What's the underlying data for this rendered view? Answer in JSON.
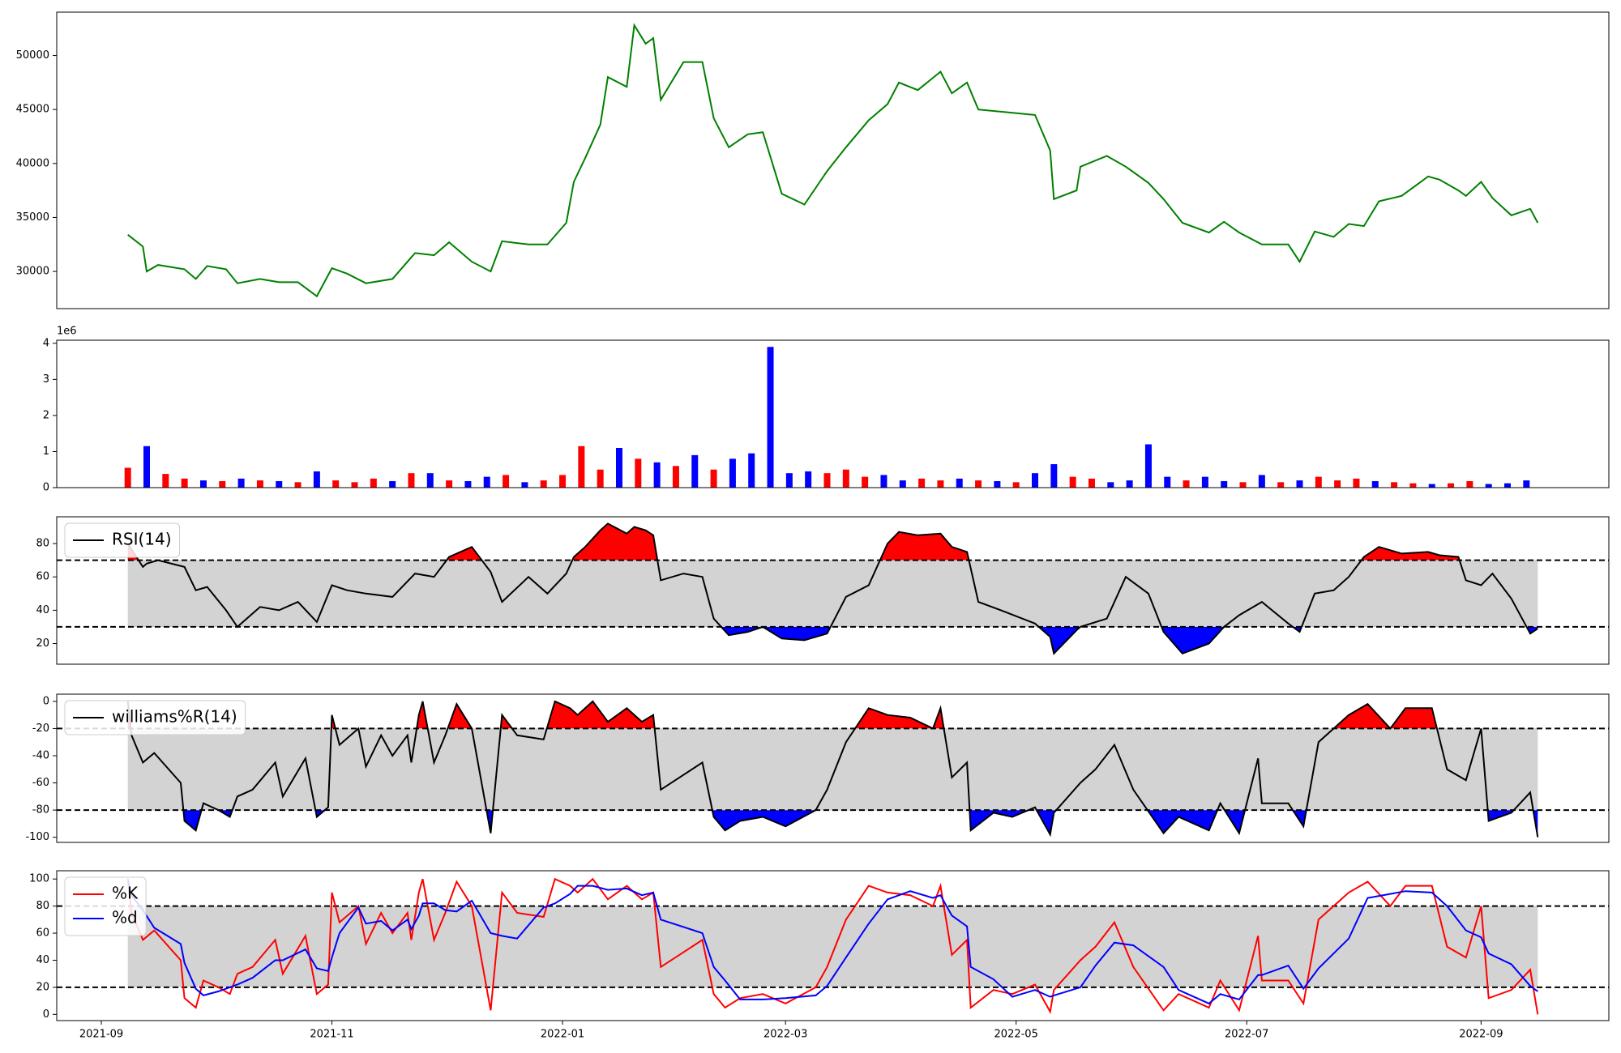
{
  "chart_data": [
    {
      "type": "line",
      "color": "#008000",
      "x": [
        7,
        11,
        12,
        15,
        22,
        25,
        28,
        33,
        36,
        42,
        47,
        52,
        57,
        61,
        65,
        70,
        77,
        83,
        88,
        92,
        98,
        103,
        106,
        113,
        118,
        123,
        125,
        128,
        132,
        134,
        139,
        141,
        144,
        146,
        148,
        154,
        159,
        162,
        166,
        171,
        175,
        180,
        186,
        192,
        197,
        203,
        208,
        211,
        216,
        222,
        225,
        229,
        232,
        238,
        247,
        251,
        252,
        258,
        259,
        266,
        271,
        277,
        281,
        286,
        293,
        297,
        301,
        307,
        314,
        317,
        321,
        326,
        330,
        334,
        338,
        344,
        351,
        354,
        359,
        361,
        365,
        368,
        373,
        378,
        380
      ],
      "values": [
        33400,
        32300,
        30000,
        30600,
        30200,
        29300,
        30500,
        30200,
        28900,
        29300,
        29000,
        29000,
        27700,
        30300,
        29800,
        28900,
        29300,
        31700,
        31500,
        32700,
        30900,
        30000,
        32800,
        32500,
        32500,
        34500,
        38300,
        40500,
        43600,
        48000,
        47100,
        52800,
        51100,
        51600,
        45900,
        49400,
        49400,
        44200,
        41500,
        42700,
        42900,
        37200,
        36200,
        39300,
        41500,
        44000,
        45500,
        47500,
        46800,
        48500,
        46500,
        47500,
        45000,
        44800,
        44500,
        41200,
        36700,
        37500,
        39700,
        40700,
        39700,
        38200,
        36700,
        34500,
        33600,
        34600,
        33600,
        32500,
        32500,
        30900,
        33700,
        33200,
        34400,
        34200,
        36500,
        37000,
        38800,
        38500,
        37500,
        37000,
        38300,
        36800,
        35200,
        35800,
        34500
      ],
      "xlim": [
        -11.8,
        398.8
      ],
      "ylim": [
        26555,
        54019
      ],
      "yticks": [
        30000,
        35000,
        40000,
        45000,
        50000
      ]
    },
    {
      "type": "bar",
      "offset_label": "1e6",
      "x": [
        7,
        12,
        17,
        22,
        27,
        32,
        37,
        42,
        47,
        52,
        57,
        62,
        67,
        72,
        77,
        82,
        87,
        92,
        97,
        102,
        107,
        112,
        117,
        122,
        127,
        132,
        137,
        142,
        147,
        152,
        157,
        162,
        167,
        172,
        177,
        182,
        187,
        192,
        197,
        202,
        207,
        212,
        217,
        222,
        227,
        232,
        237,
        242,
        247,
        252,
        257,
        262,
        267,
        272,
        277,
        282,
        287,
        292,
        297,
        302,
        307,
        312,
        317,
        322,
        327,
        332,
        337,
        342,
        347,
        352,
        357,
        362,
        367,
        372,
        377
      ],
      "values": [
        550000,
        1150000,
        380000,
        250000,
        200000,
        180000,
        250000,
        200000,
        180000,
        150000,
        450000,
        200000,
        150000,
        250000,
        180000,
        400000,
        400000,
        200000,
        180000,
        300000,
        350000,
        150000,
        200000,
        350000,
        1150000,
        500000,
        1100000,
        800000,
        700000,
        600000,
        900000,
        500000,
        800000,
        950000,
        3900000,
        400000,
        450000,
        400000,
        500000,
        300000,
        350000,
        200000,
        250000,
        200000,
        250000,
        200000,
        180000,
        150000,
        400000,
        650000,
        300000,
        250000,
        150000,
        200000,
        1200000,
        300000,
        200000,
        300000,
        180000,
        150000,
        350000,
        150000,
        200000,
        300000,
        200000,
        250000,
        180000,
        150000,
        120000,
        100000,
        120000,
        180000,
        100000,
        120000,
        200000
      ],
      "colors": [
        "#ff0000",
        "#0000ff",
        "#ff0000",
        "#ff0000",
        "#0000ff",
        "#ff0000",
        "#0000ff",
        "#ff0000",
        "#0000ff",
        "#ff0000",
        "#0000ff",
        "#ff0000",
        "#ff0000",
        "#ff0000",
        "#0000ff",
        "#ff0000",
        "#0000ff",
        "#ff0000",
        "#0000ff",
        "#0000ff",
        "#ff0000",
        "#0000ff",
        "#ff0000",
        "#ff0000",
        "#ff0000",
        "#ff0000",
        "#0000ff",
        "#ff0000",
        "#0000ff",
        "#ff0000",
        "#0000ff",
        "#ff0000",
        "#0000ff",
        "#0000ff",
        "#0000ff",
        "#0000ff",
        "#0000ff",
        "#ff0000",
        "#ff0000",
        "#ff0000",
        "#0000ff",
        "#0000ff",
        "#ff0000",
        "#ff0000",
        "#0000ff",
        "#ff0000",
        "#0000ff",
        "#ff0000",
        "#0000ff",
        "#0000ff",
        "#ff0000",
        "#ff0000",
        "#0000ff",
        "#0000ff",
        "#0000ff",
        "#0000ff",
        "#ff0000",
        "#0000ff",
        "#0000ff",
        "#ff0000",
        "#0000ff",
        "#ff0000",
        "#0000ff",
        "#ff0000",
        "#ff0000",
        "#ff0000",
        "#0000ff",
        "#ff0000",
        "#ff0000",
        "#0000ff",
        "#ff0000",
        "#ff0000",
        "#0000ff",
        "#0000ff",
        "#0000ff"
      ],
      "xlim": [
        -11.8,
        398.8
      ],
      "ylim": [
        0,
        4086000
      ],
      "yticks": [
        0,
        {
          "value": 1000000,
          "label": "1"
        },
        {
          "value": 2000000,
          "label": "2"
        },
        {
          "value": 3000000,
          "label": "3"
        },
        {
          "value": 4000000,
          "label": "4"
        }
      ]
    },
    {
      "type": "oscillator",
      "x": [
        7,
        11,
        12,
        15,
        22,
        25,
        28,
        33,
        36,
        42,
        47,
        52,
        57,
        61,
        65,
        70,
        77,
        83,
        88,
        92,
        98,
        103,
        106,
        113,
        118,
        123,
        125,
        128,
        132,
        134,
        139,
        141,
        144,
        146,
        148,
        154,
        159,
        162,
        166,
        171,
        175,
        180,
        186,
        192,
        197,
        203,
        208,
        211,
        216,
        222,
        225,
        229,
        232,
        238,
        247,
        251,
        252,
        258,
        259,
        266,
        271,
        277,
        281,
        286,
        293,
        297,
        301,
        307,
        314,
        317,
        321,
        326,
        330,
        334,
        338,
        344,
        351,
        354,
        359,
        361,
        365,
        368,
        373,
        378,
        380
      ],
      "series": [
        {
          "name": "RSI(14)",
          "color": "#000000",
          "values": [
            80,
            66,
            68,
            70,
            66,
            52,
            54,
            40,
            30,
            42,
            40,
            45,
            33,
            55,
            52,
            50,
            48,
            62,
            60,
            72,
            78,
            63,
            45,
            60,
            50,
            62,
            72,
            78,
            88,
            92,
            86,
            90,
            88,
            85,
            58,
            62,
            60,
            35,
            25,
            27,
            30,
            23,
            22,
            26,
            48,
            55,
            80,
            87,
            85,
            86,
            78,
            75,
            45,
            40,
            32,
            24,
            14,
            28,
            30,
            35,
            60,
            50,
            27,
            14,
            20,
            30,
            37,
            45,
            32,
            27,
            50,
            52,
            60,
            72,
            78,
            74,
            75,
            73,
            72,
            58,
            55,
            62,
            47,
            26,
            29
          ]
        }
      ],
      "xlim": [
        -11.8,
        398.8
      ],
      "ylim": [
        7.6,
        96.1
      ],
      "yticks": [
        20,
        40,
        60,
        80
      ],
      "thresholds": [
        70,
        30
      ],
      "band_color": "#d3d3d3",
      "fill_colors": [
        "#ff0000",
        "#0000ff"
      ],
      "legend": "upper left"
    },
    {
      "type": "oscillator",
      "x": [
        7,
        8,
        11,
        14,
        21,
        22,
        25,
        27,
        31,
        34,
        36,
        40,
        46,
        48,
        54,
        57,
        60,
        61,
        63,
        68,
        70,
        74,
        77,
        81,
        82,
        84,
        85,
        88,
        91,
        94,
        98,
        103,
        106,
        110,
        117,
        120,
        124,
        126,
        130,
        134,
        139,
        143,
        146,
        148,
        159,
        162,
        165,
        169,
        175,
        181,
        189,
        192,
        197,
        203,
        208,
        214,
        220,
        222,
        225,
        229,
        230,
        236,
        241,
        247,
        251,
        252,
        259,
        263,
        268,
        273,
        281,
        285,
        293,
        296,
        301,
        306,
        307,
        314,
        318,
        322,
        330,
        335,
        341,
        345,
        352,
        356,
        361,
        365,
        367,
        373,
        378,
        380
      ],
      "series": [
        {
          "name": "williams%R(14)",
          "color": "#000000",
          "values": [
            0,
            -25,
            -45,
            -38,
            -60,
            -88,
            -95,
            -75,
            -80,
            -85,
            -70,
            -65,
            -45,
            -70,
            -42,
            -85,
            -78,
            -10,
            -32,
            -20,
            -48,
            -25,
            -40,
            -25,
            -45,
            -10,
            0,
            -45,
            -25,
            -2,
            -20,
            -97,
            -10,
            -25,
            -28,
            0,
            -5,
            -10,
            0,
            -15,
            -5,
            -15,
            -10,
            -65,
            -45,
            -85,
            -95,
            -88,
            -85,
            -92,
            -80,
            -65,
            -30,
            -5,
            -10,
            -12,
            -20,
            -5,
            -56,
            -45,
            -95,
            -82,
            -85,
            -78,
            -98,
            -82,
            -60,
            -50,
            -32,
            -65,
            -97,
            -85,
            -95,
            -75,
            -97,
            -42,
            -75,
            -75,
            -92,
            -30,
            -10,
            -2,
            -20,
            -5,
            -5,
            -50,
            -58,
            -20,
            -88,
            -82,
            -67,
            -100
          ]
        }
      ],
      "xlim": [
        -11.8,
        398.8
      ],
      "ylim": [
        -103.8,
        5.3
      ],
      "yticks": [
        -100,
        -80,
        -60,
        -40,
        -20,
        0
      ],
      "thresholds": [
        -20,
        -80
      ],
      "band_color": "#d3d3d3",
      "fill_colors": [
        "#ff0000",
        "#0000ff"
      ],
      "legend": "upper left"
    },
    {
      "type": "oscillator",
      "x": [
        7,
        8,
        11,
        14,
        21,
        22,
        25,
        27,
        31,
        34,
        36,
        40,
        46,
        48,
        54,
        57,
        60,
        61,
        63,
        68,
        70,
        74,
        77,
        81,
        82,
        84,
        85,
        88,
        91,
        94,
        98,
        103,
        106,
        110,
        117,
        120,
        124,
        126,
        130,
        134,
        139,
        143,
        146,
        148,
        159,
        162,
        165,
        169,
        175,
        181,
        189,
        192,
        197,
        203,
        208,
        214,
        220,
        222,
        225,
        229,
        230,
        236,
        241,
        247,
        251,
        252,
        259,
        263,
        268,
        273,
        281,
        285,
        293,
        296,
        301,
        306,
        307,
        314,
        318,
        322,
        330,
        335,
        341,
        345,
        352,
        356,
        361,
        365,
        367,
        373,
        378,
        380
      ],
      "series": [
        {
          "name": "%K",
          "color": "#ff0000",
          "values": [
            100,
            75,
            55,
            62,
            40,
            12,
            5,
            25,
            20,
            15,
            30,
            35,
            55,
            30,
            58,
            15,
            22,
            90,
            68,
            80,
            52,
            75,
            60,
            75,
            55,
            90,
            100,
            55,
            75,
            98,
            80,
            3,
            90,
            75,
            72,
            100,
            95,
            90,
            100,
            85,
            95,
            85,
            90,
            35,
            55,
            15,
            5,
            12,
            15,
            8,
            20,
            35,
            70,
            95,
            90,
            88,
            80,
            95,
            44,
            55,
            5,
            18,
            15,
            22,
            2,
            18,
            40,
            50,
            68,
            35,
            3,
            15,
            5,
            25,
            3,
            58,
            25,
            25,
            8,
            70,
            90,
            98,
            80,
            95,
            95,
            50,
            42,
            80,
            12,
            18,
            33,
            0
          ]
        },
        {
          "name": "%d",
          "color": "#0000ff",
          "values": [
            100,
            88,
            77,
            64,
            52,
            38,
            19,
            14,
            17,
            20,
            22,
            27,
            40,
            40,
            48,
            34,
            32,
            42,
            60,
            79,
            67,
            69,
            62,
            70,
            63,
            73,
            82,
            82,
            77,
            76,
            84,
            60,
            58,
            56,
            79,
            82,
            89,
            95,
            95,
            92,
            93,
            88,
            90,
            70,
            60,
            35,
            25,
            11,
            11,
            12,
            14,
            21,
            42,
            67,
            85,
            91,
            86,
            88,
            73,
            65,
            35,
            26,
            13,
            18,
            13,
            14,
            20,
            36,
            53,
            51,
            35,
            18,
            8,
            15,
            11,
            29,
            29,
            36,
            19,
            34,
            56,
            86,
            89,
            91,
            90,
            80,
            62,
            57,
            45,
            37,
            21,
            17
          ]
        }
      ],
      "xlim": [
        -11.8,
        398.8
      ],
      "ylim": [
        -4.6,
        106.1
      ],
      "yticks": [
        0,
        20,
        40,
        60,
        80,
        100
      ],
      "thresholds": [
        80,
        20
      ],
      "band_color": "#d3d3d3",
      "legend": "upper left",
      "xticks": [
        {
          "value": 0,
          "label": "2021-09"
        },
        {
          "value": 61,
          "label": "2021-11"
        },
        {
          "value": 122,
          "label": "2022-01"
        },
        {
          "value": 181,
          "label": "2022-03"
        },
        {
          "value": 242,
          "label": "2022-05"
        },
        {
          "value": 303,
          "label": "2022-07"
        },
        {
          "value": 365,
          "label": "2022-09"
        }
      ]
    }
  ]
}
